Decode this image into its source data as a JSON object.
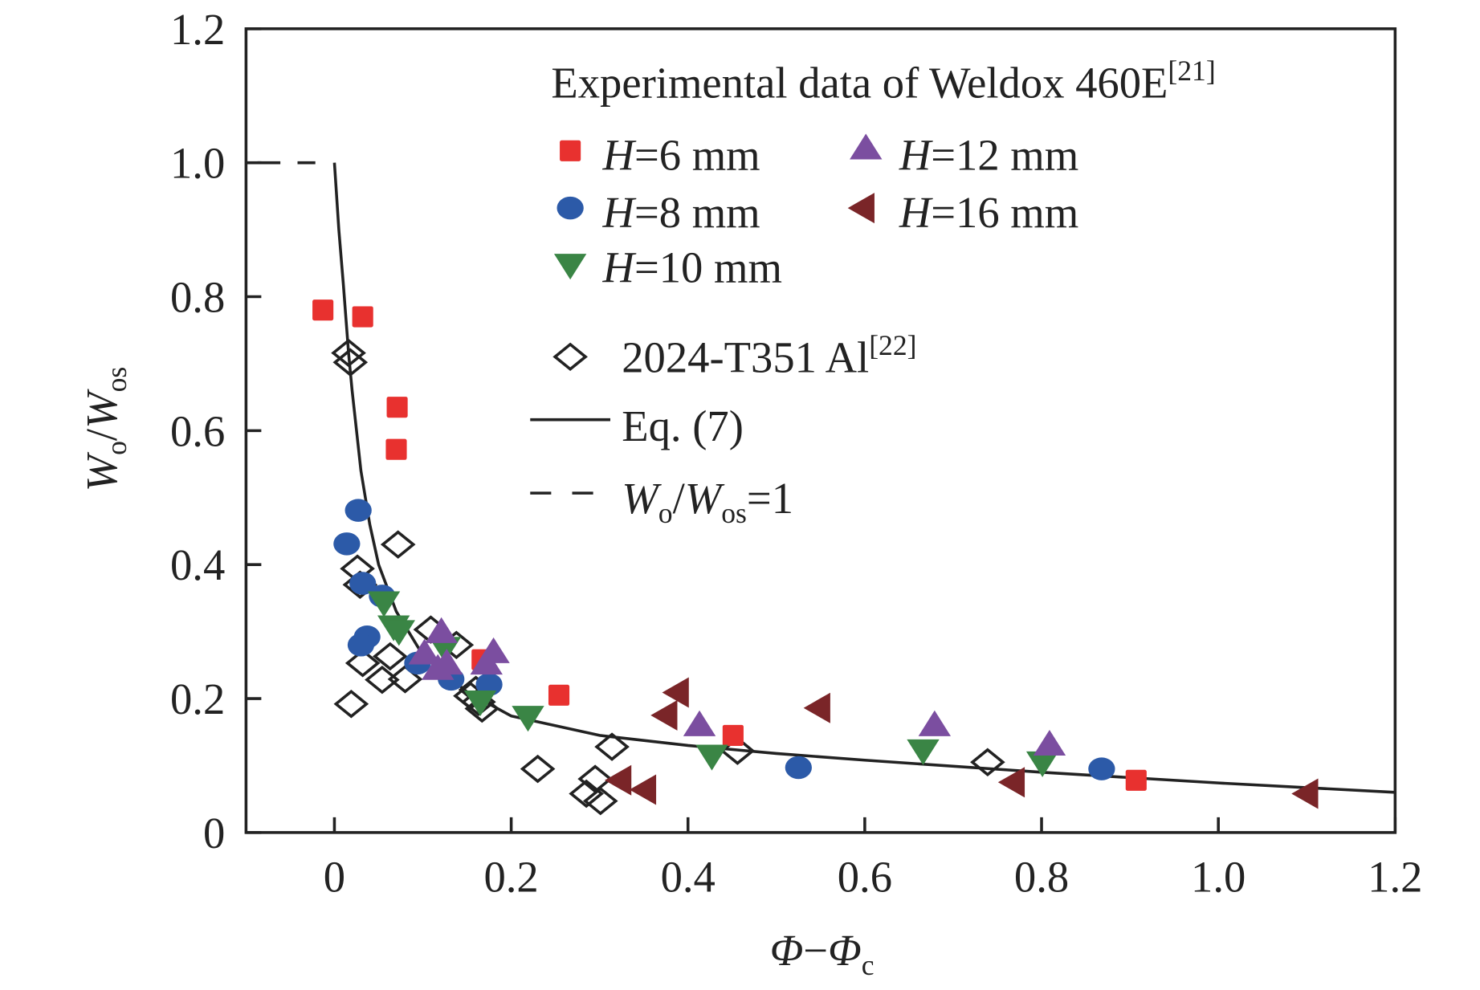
{
  "chart_data": {
    "type": "scatter",
    "xlabel": {
      "main": "Φ",
      "sep": "−",
      "main2": "Φ",
      "sub": "c"
    },
    "ylabel": {
      "main": "W",
      "sub": "o",
      "slash": "/",
      "main2": "W",
      "sub2": "os"
    },
    "xlim": [
      -0.1,
      1.2
    ],
    "ylim": [
      0,
      1.2
    ],
    "xticks": [
      0,
      0.2,
      0.4,
      0.6,
      0.8,
      1.0,
      1.2
    ],
    "xtick_labels": [
      "0",
      "0.2",
      "0.4",
      "0.6",
      "0.8",
      "1.0",
      "1.2"
    ],
    "yticks": [
      0,
      0.2,
      0.4,
      0.6,
      0.8,
      1.0,
      1.2
    ],
    "ytick_labels": [
      "0",
      "0.2",
      "0.4",
      "0.6",
      "0.8",
      "1.0",
      "1.2"
    ],
    "grid": false,
    "legend_placement": "top-right",
    "legend_title": {
      "text": "Experimental data of Weldox 460E",
      "sup": "[21]"
    },
    "series": [
      {
        "name": "H=6 mm",
        "marker": "square",
        "color": "#e8312f",
        "x": [
          -0.013,
          0.032,
          0.071,
          0.07,
          0.167,
          0.254,
          0.451,
          0.907
        ],
        "y": [
          0.78,
          0.77,
          0.635,
          0.572,
          0.258,
          0.205,
          0.145,
          0.078
        ]
      },
      {
        "name": "H=8 mm",
        "marker": "circle",
        "color": "#2c5aa8",
        "x": [
          0.027,
          0.014,
          0.032,
          0.054,
          0.037,
          0.03,
          0.094,
          0.132,
          0.175,
          0.525,
          0.868
        ],
        "y": [
          0.481,
          0.431,
          0.372,
          0.353,
          0.292,
          0.28,
          0.253,
          0.229,
          0.221,
          0.097,
          0.095
        ]
      },
      {
        "name": "H=10 mm",
        "marker": "triangle-down",
        "color": "#3a8545",
        "x": [
          0.056,
          0.067,
          0.073,
          0.125,
          0.165,
          0.219,
          0.427,
          0.666,
          0.801
        ],
        "y": [
          0.343,
          0.307,
          0.3,
          0.275,
          0.195,
          0.172,
          0.114,
          0.122,
          0.104
        ]
      },
      {
        "name": "H=12 mm",
        "marker": "triangle-up",
        "color": "#7b4ea0",
        "x": [
          0.102,
          0.121,
          0.127,
          0.117,
          0.18,
          0.172,
          0.413,
          0.679,
          0.809
        ],
        "y": [
          0.268,
          0.3,
          0.253,
          0.245,
          0.27,
          0.253,
          0.161,
          0.161,
          0.132
        ]
      },
      {
        "name": "H=16 mm",
        "marker": "triangle-left",
        "color": "#7a2528",
        "x": [
          0.388,
          0.375,
          0.548,
          0.323,
          0.351,
          0.768,
          1.1
        ],
        "y": [
          0.209,
          0.175,
          0.186,
          0.078,
          0.064,
          0.075,
          0.058
        ]
      },
      {
        "name": "2024-T351 Al",
        "name_sup": "[22]",
        "marker": "diamond-open",
        "color": "#222222",
        "x": [
          0.016,
          0.018,
          0.072,
          0.026,
          0.029,
          0.032,
          0.019,
          0.054,
          0.063,
          0.08,
          0.109,
          0.138,
          0.154,
          0.163,
          0.167,
          0.16,
          0.23,
          0.285,
          0.295,
          0.301,
          0.314,
          0.456,
          0.739
        ],
        "y": [
          0.716,
          0.702,
          0.43,
          0.394,
          0.37,
          0.253,
          0.192,
          0.228,
          0.263,
          0.229,
          0.303,
          0.28,
          0.204,
          0.195,
          0.185,
          0.213,
          0.095,
          0.058,
          0.08,
          0.047,
          0.128,
          0.122,
          0.105
        ]
      },
      {
        "name": "Eq. (7)",
        "marker": "line-solid",
        "color": "#222222",
        "x": [
          0,
          0.005,
          0.01,
          0.016,
          0.02,
          0.03,
          0.04,
          0.05,
          0.07,
          0.1,
          0.15,
          0.2,
          0.3,
          0.4,
          0.5,
          0.6,
          0.8,
          1.0,
          1.2
        ],
        "y": [
          1.0,
          0.9,
          0.82,
          0.716,
          0.66,
          0.54,
          0.46,
          0.4,
          0.33,
          0.265,
          0.21,
          0.174,
          0.145,
          0.13,
          0.118,
          0.108,
          0.09,
          0.074,
          0.06
        ]
      },
      {
        "name_parts": {
          "main": "W",
          "sub": "o",
          "slash": "/",
          "main2": "W",
          "sub2": "os",
          "rest": "=1"
        },
        "marker": "line-dashed",
        "color": "#222222",
        "x": [
          -0.1,
          0
        ],
        "y": [
          1.0,
          1.0
        ]
      }
    ]
  }
}
